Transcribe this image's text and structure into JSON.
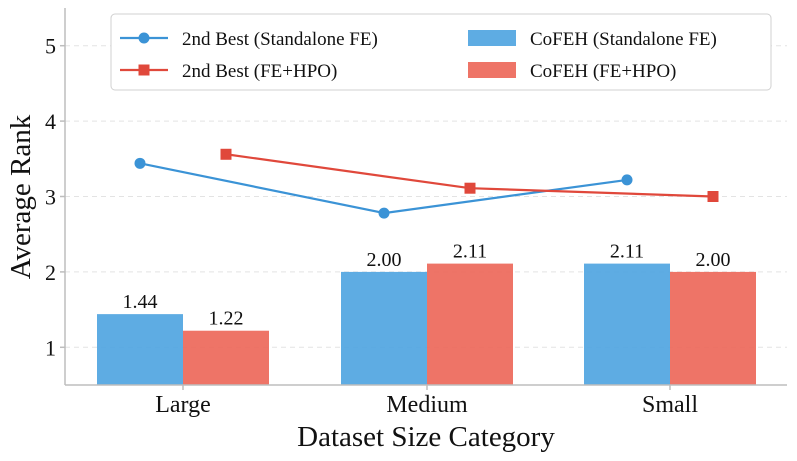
{
  "chart_data": {
    "type": "bar",
    "xlabel": "Dataset Size Category",
    "ylabel": "Average Rank",
    "categories": [
      "Large",
      "Medium",
      "Small"
    ],
    "ylim": [
      0.5,
      5.5
    ],
    "yticks": [
      1,
      2,
      3,
      4,
      5
    ],
    "grid": "horizontal dashed",
    "legend_position": "top",
    "bar_series": [
      {
        "name": "CoFEH (Standalone FE)",
        "color": "#4da3e0",
        "values": [
          1.44,
          2.0,
          2.11
        ],
        "labels": [
          "1.44",
          "2.00",
          "2.11"
        ]
      },
      {
        "name": "CoFEH (FE+HPO)",
        "color": "#ec6557",
        "values": [
          1.22,
          2.11,
          2.0
        ],
        "labels": [
          "1.22",
          "2.11",
          "2.00"
        ]
      }
    ],
    "line_series": [
      {
        "name": "2nd Best (Standalone FE)",
        "color": "#3b93d6",
        "marker": "circle",
        "values": [
          3.44,
          2.78,
          3.22
        ]
      },
      {
        "name": "2nd Best (FE+HPO)",
        "color": "#e0483b",
        "marker": "square",
        "values": [
          3.56,
          3.11,
          3.0
        ]
      }
    ]
  }
}
